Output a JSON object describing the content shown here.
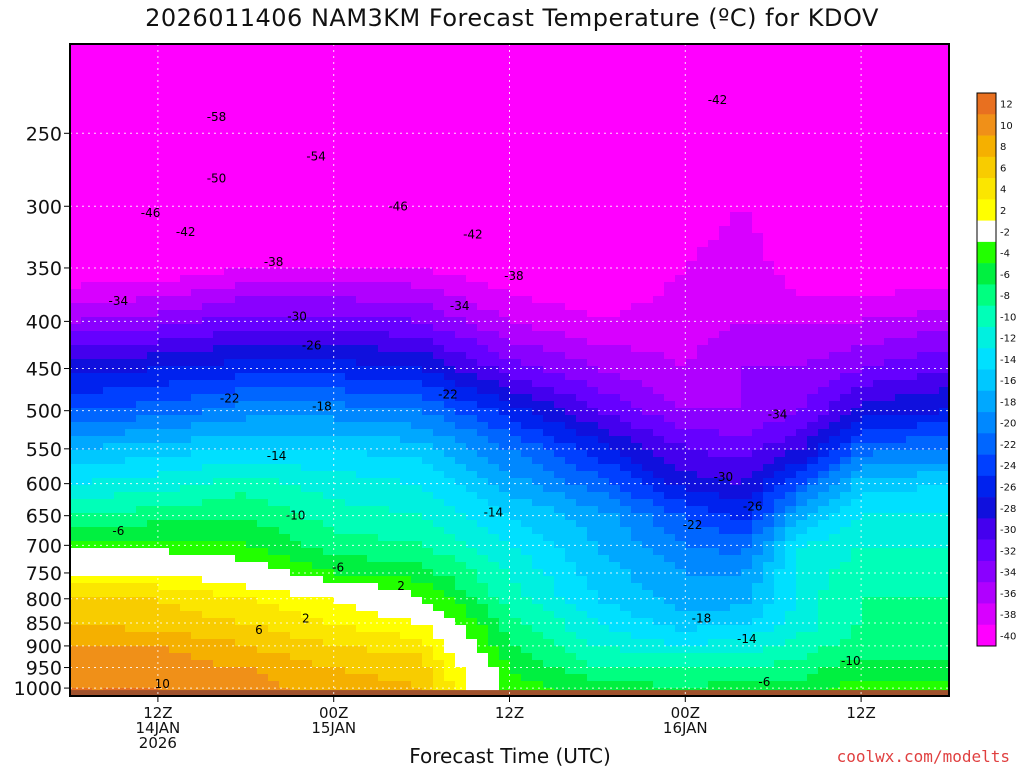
{
  "title": "2026011406 NAM3KM Forecast Temperature (ºC) for KDOV",
  "x_axis_label": "Forecast Time (UTC)",
  "credit": "coolwx.com/modelts",
  "chart_data": {
    "type": "heatmap",
    "title": "2026011406 NAM3KM Forecast Temperature (ºC) for KDOV",
    "xlabel": "Forecast Time (UTC)",
    "ylabel": "",
    "y_scale": "log-pressure",
    "y_ticks_hpa": [
      250,
      300,
      350,
      400,
      450,
      500,
      550,
      600,
      650,
      700,
      750,
      800,
      850,
      900,
      950,
      1000
    ],
    "x_ticks": [
      {
        "hour": 6,
        "lines": [
          "12Z",
          "14JAN",
          "2026"
        ]
      },
      {
        "hour": 18,
        "lines": [
          "00Z",
          "15JAN"
        ]
      },
      {
        "hour": 30,
        "lines": [
          "12Z"
        ]
      },
      {
        "hour": 42,
        "lines": [
          "00Z",
          "16JAN"
        ]
      },
      {
        "hour": 54,
        "lines": [
          "12Z"
        ]
      }
    ],
    "x_range_hours": [
      0,
      60
    ],
    "y_range_hpa": [
      200,
      1020
    ],
    "grid": true,
    "colorbar": {
      "position": "right",
      "labels": [
        "12",
        "10",
        "8",
        "6",
        "4",
        "2",
        "-2",
        "-4",
        "-6",
        "-8",
        "-10",
        "-12",
        "-14",
        "-16",
        "-18",
        "-20",
        "-22",
        "-24",
        "-26",
        "-28",
        "-30",
        "-32",
        "-34",
        "-36",
        "-38",
        "-40"
      ],
      "colors": [
        "#e87020",
        "#f09018",
        "#f5b000",
        "#f8cc00",
        "#fbe600",
        "#ffff00",
        "#ffffff",
        "#22ff00",
        "#00f040",
        "#00ff80",
        "#00ffb8",
        "#00f0e0",
        "#00e0ff",
        "#00c8ff",
        "#00a8ff",
        "#0088ff",
        "#0066ff",
        "#0040ff",
        "#0022ee",
        "#1010dd",
        "#4400ee",
        "#6600ff",
        "#8a00ff",
        "#b000ff",
        "#d800ff",
        "#ff00ff"
      ]
    },
    "profiles": [
      {
        "hour": 0,
        "levels": [
          [
            200,
            -58
          ],
          [
            250,
            -58
          ],
          [
            300,
            -46
          ],
          [
            350,
            -40
          ],
          [
            400,
            -34
          ],
          [
            450,
            -27
          ],
          [
            500,
            -22
          ],
          [
            550,
            -16
          ],
          [
            600,
            -12
          ],
          [
            650,
            -8
          ],
          [
            700,
            -3
          ],
          [
            750,
            2
          ],
          [
            800,
            6
          ],
          [
            850,
            8
          ],
          [
            900,
            10
          ],
          [
            950,
            11
          ],
          [
            1000,
            12
          ]
        ]
      },
      {
        "hour": 6,
        "levels": [
          [
            200,
            -58
          ],
          [
            250,
            -58
          ],
          [
            300,
            -46
          ],
          [
            350,
            -40
          ],
          [
            400,
            -33
          ],
          [
            450,
            -26
          ],
          [
            500,
            -21
          ],
          [
            550,
            -15
          ],
          [
            600,
            -11
          ],
          [
            650,
            -7
          ],
          [
            700,
            -3
          ],
          [
            750,
            2
          ],
          [
            800,
            6
          ],
          [
            850,
            7
          ],
          [
            900,
            10
          ],
          [
            950,
            11
          ],
          [
            1000,
            12
          ]
        ]
      },
      {
        "hour": 12,
        "levels": [
          [
            200,
            -58
          ],
          [
            250,
            -56
          ],
          [
            300,
            -46
          ],
          [
            350,
            -38
          ],
          [
            400,
            -31
          ],
          [
            450,
            -25
          ],
          [
            500,
            -19
          ],
          [
            550,
            -14
          ],
          [
            600,
            -9
          ],
          [
            650,
            -6
          ],
          [
            700,
            -4
          ],
          [
            750,
            0
          ],
          [
            800,
            4
          ],
          [
            850,
            6
          ],
          [
            900,
            8
          ],
          [
            950,
            10
          ],
          [
            1000,
            11
          ]
        ]
      },
      {
        "hour": 18,
        "levels": [
          [
            200,
            -58
          ],
          [
            250,
            -54
          ],
          [
            300,
            -46
          ],
          [
            350,
            -38
          ],
          [
            400,
            -31
          ],
          [
            450,
            -25
          ],
          [
            500,
            -19
          ],
          [
            550,
            -14
          ],
          [
            600,
            -11
          ],
          [
            650,
            -9
          ],
          [
            700,
            -7
          ],
          [
            750,
            -4
          ],
          [
            800,
            2
          ],
          [
            850,
            4
          ],
          [
            900,
            6
          ],
          [
            950,
            8
          ],
          [
            1000,
            9
          ]
        ]
      },
      {
        "hour": 24,
        "levels": [
          [
            200,
            -58
          ],
          [
            250,
            -54
          ],
          [
            300,
            -46
          ],
          [
            350,
            -38
          ],
          [
            400,
            -32
          ],
          [
            450,
            -26
          ],
          [
            500,
            -20
          ],
          [
            550,
            -15
          ],
          [
            600,
            -12
          ],
          [
            650,
            -10
          ],
          [
            700,
            -8
          ],
          [
            750,
            -5
          ],
          [
            800,
            -2
          ],
          [
            850,
            2
          ],
          [
            900,
            5
          ],
          [
            950,
            7
          ],
          [
            1000,
            8
          ]
        ]
      },
      {
        "hour": 30,
        "levels": [
          [
            200,
            -56
          ],
          [
            250,
            -50
          ],
          [
            300,
            -44
          ],
          [
            350,
            -40
          ],
          [
            400,
            -36
          ],
          [
            450,
            -31
          ],
          [
            500,
            -25
          ],
          [
            550,
            -20
          ],
          [
            600,
            -17
          ],
          [
            650,
            -14
          ],
          [
            700,
            -12
          ],
          [
            750,
            -10
          ],
          [
            800,
            -9
          ],
          [
            850,
            -7
          ],
          [
            900,
            -6
          ],
          [
            950,
            -4
          ],
          [
            1000,
            -3
          ]
        ]
      },
      {
        "hour": 36,
        "levels": [
          [
            200,
            -50
          ],
          [
            250,
            -44
          ],
          [
            300,
            -42
          ],
          [
            350,
            -40
          ],
          [
            400,
            -38
          ],
          [
            450,
            -34
          ],
          [
            500,
            -30
          ],
          [
            550,
            -25
          ],
          [
            600,
            -21
          ],
          [
            650,
            -17
          ],
          [
            700,
            -16
          ],
          [
            750,
            -15
          ],
          [
            800,
            -14
          ],
          [
            850,
            -12
          ],
          [
            900,
            -10
          ],
          [
            950,
            -8
          ],
          [
            1000,
            -5
          ]
        ]
      },
      {
        "hour": 42,
        "levels": [
          [
            200,
            -46
          ],
          [
            250,
            -42
          ],
          [
            300,
            -40
          ],
          [
            350,
            -38
          ],
          [
            400,
            -37
          ],
          [
            450,
            -36
          ],
          [
            500,
            -34
          ],
          [
            550,
            -30
          ],
          [
            600,
            -27
          ],
          [
            650,
            -22
          ],
          [
            700,
            -20
          ],
          [
            750,
            -18
          ],
          [
            800,
            -17
          ],
          [
            850,
            -15
          ],
          [
            900,
            -12
          ],
          [
            950,
            -8
          ],
          [
            1000,
            -6
          ]
        ]
      },
      {
        "hour": 46,
        "levels": [
          [
            200,
            -46
          ],
          [
            250,
            -42
          ],
          [
            300,
            -38
          ],
          [
            350,
            -36
          ],
          [
            400,
            -36
          ],
          [
            450,
            -34
          ],
          [
            500,
            -34
          ],
          [
            550,
            -31
          ],
          [
            600,
            -28
          ],
          [
            650,
            -25
          ],
          [
            700,
            -21
          ],
          [
            750,
            -18
          ],
          [
            800,
            -17
          ],
          [
            850,
            -14
          ],
          [
            900,
            -11
          ],
          [
            950,
            -8
          ],
          [
            1000,
            -5
          ]
        ]
      },
      {
        "hour": 50,
        "levels": [
          [
            200,
            -46
          ],
          [
            250,
            -44
          ],
          [
            300,
            -42
          ],
          [
            350,
            -40
          ],
          [
            400,
            -36
          ],
          [
            450,
            -34
          ],
          [
            500,
            -32
          ],
          [
            550,
            -28
          ],
          [
            600,
            -22
          ],
          [
            650,
            -16
          ],
          [
            700,
            -12
          ],
          [
            750,
            -11
          ],
          [
            800,
            -11
          ],
          [
            850,
            -11
          ],
          [
            900,
            -9
          ],
          [
            950,
            -7
          ],
          [
            1000,
            -5
          ]
        ]
      },
      {
        "hour": 54,
        "levels": [
          [
            200,
            -46
          ],
          [
            250,
            -45
          ],
          [
            300,
            -44
          ],
          [
            350,
            -40
          ],
          [
            400,
            -36
          ],
          [
            450,
            -32
          ],
          [
            500,
            -27
          ],
          [
            550,
            -21
          ],
          [
            600,
            -15
          ],
          [
            650,
            -12
          ],
          [
            700,
            -10
          ],
          [
            750,
            -9
          ],
          [
            800,
            -8
          ],
          [
            850,
            -8
          ],
          [
            900,
            -7
          ],
          [
            950,
            -5
          ],
          [
            1000,
            -3
          ]
        ]
      },
      {
        "hour": 60,
        "levels": [
          [
            200,
            -46
          ],
          [
            250,
            -46
          ],
          [
            300,
            -44
          ],
          [
            350,
            -40
          ],
          [
            400,
            -35
          ],
          [
            450,
            -30
          ],
          [
            500,
            -26
          ],
          [
            550,
            -20
          ],
          [
            600,
            -14
          ],
          [
            650,
            -12
          ],
          [
            700,
            -10
          ],
          [
            750,
            -9
          ],
          [
            800,
            -8
          ],
          [
            850,
            -7
          ],
          [
            900,
            -7
          ],
          [
            950,
            -5
          ],
          [
            1000,
            -3
          ]
        ]
      }
    ],
    "contour_labels": [
      {
        "text": "-58",
        "hour": 10,
        "hpa": 240
      },
      {
        "text": "-54",
        "hour": 16.8,
        "hpa": 265
      },
      {
        "text": "-50",
        "hour": 10,
        "hpa": 280
      },
      {
        "text": "-46",
        "hour": 5.5,
        "hpa": 305
      },
      {
        "text": "-46",
        "hour": 22.4,
        "hpa": 300
      },
      {
        "text": "-42",
        "hour": 7.9,
        "hpa": 320
      },
      {
        "text": "-42",
        "hour": 27.5,
        "hpa": 322
      },
      {
        "text": "-42",
        "hour": 44.2,
        "hpa": 230
      },
      {
        "text": "-38",
        "hour": 13.9,
        "hpa": 345
      },
      {
        "text": "-38",
        "hour": 30.3,
        "hpa": 357
      },
      {
        "text": "-34",
        "hour": 3.3,
        "hpa": 380
      },
      {
        "text": "-34",
        "hour": 26.6,
        "hpa": 385
      },
      {
        "text": "-34",
        "hour": 48.3,
        "hpa": 505
      },
      {
        "text": "-30",
        "hour": 15.5,
        "hpa": 395
      },
      {
        "text": "-30",
        "hour": 44.6,
        "hpa": 590
      },
      {
        "text": "-26",
        "hour": 16.5,
        "hpa": 425
      },
      {
        "text": "-26",
        "hour": 46.6,
        "hpa": 635
      },
      {
        "text": "-22",
        "hour": 10.9,
        "hpa": 485
      },
      {
        "text": "-22",
        "hour": 25.8,
        "hpa": 480
      },
      {
        "text": "-22",
        "hour": 42.5,
        "hpa": 665
      },
      {
        "text": "-18",
        "hour": 17.2,
        "hpa": 495
      },
      {
        "text": "-18",
        "hour": 43.1,
        "hpa": 840
      },
      {
        "text": "-14",
        "hour": 14.1,
        "hpa": 560
      },
      {
        "text": "-14",
        "hour": 28.9,
        "hpa": 645
      },
      {
        "text": "-14",
        "hour": 46.2,
        "hpa": 885
      },
      {
        "text": "-10",
        "hour": 15.4,
        "hpa": 650
      },
      {
        "text": "-10",
        "hour": 53.3,
        "hpa": 935
      },
      {
        "text": "-6",
        "hour": 3.3,
        "hpa": 675
      },
      {
        "text": "-6",
        "hour": 18.3,
        "hpa": 740
      },
      {
        "text": "-6",
        "hour": 47.4,
        "hpa": 985
      },
      {
        "text": "2",
        "hour": 22.6,
        "hpa": 775
      },
      {
        "text": "2",
        "hour": 16.1,
        "hpa": 840
      },
      {
        "text": "6",
        "hour": 12.9,
        "hpa": 865
      },
      {
        "text": "10",
        "hour": 6.3,
        "hpa": 990
      }
    ]
  }
}
